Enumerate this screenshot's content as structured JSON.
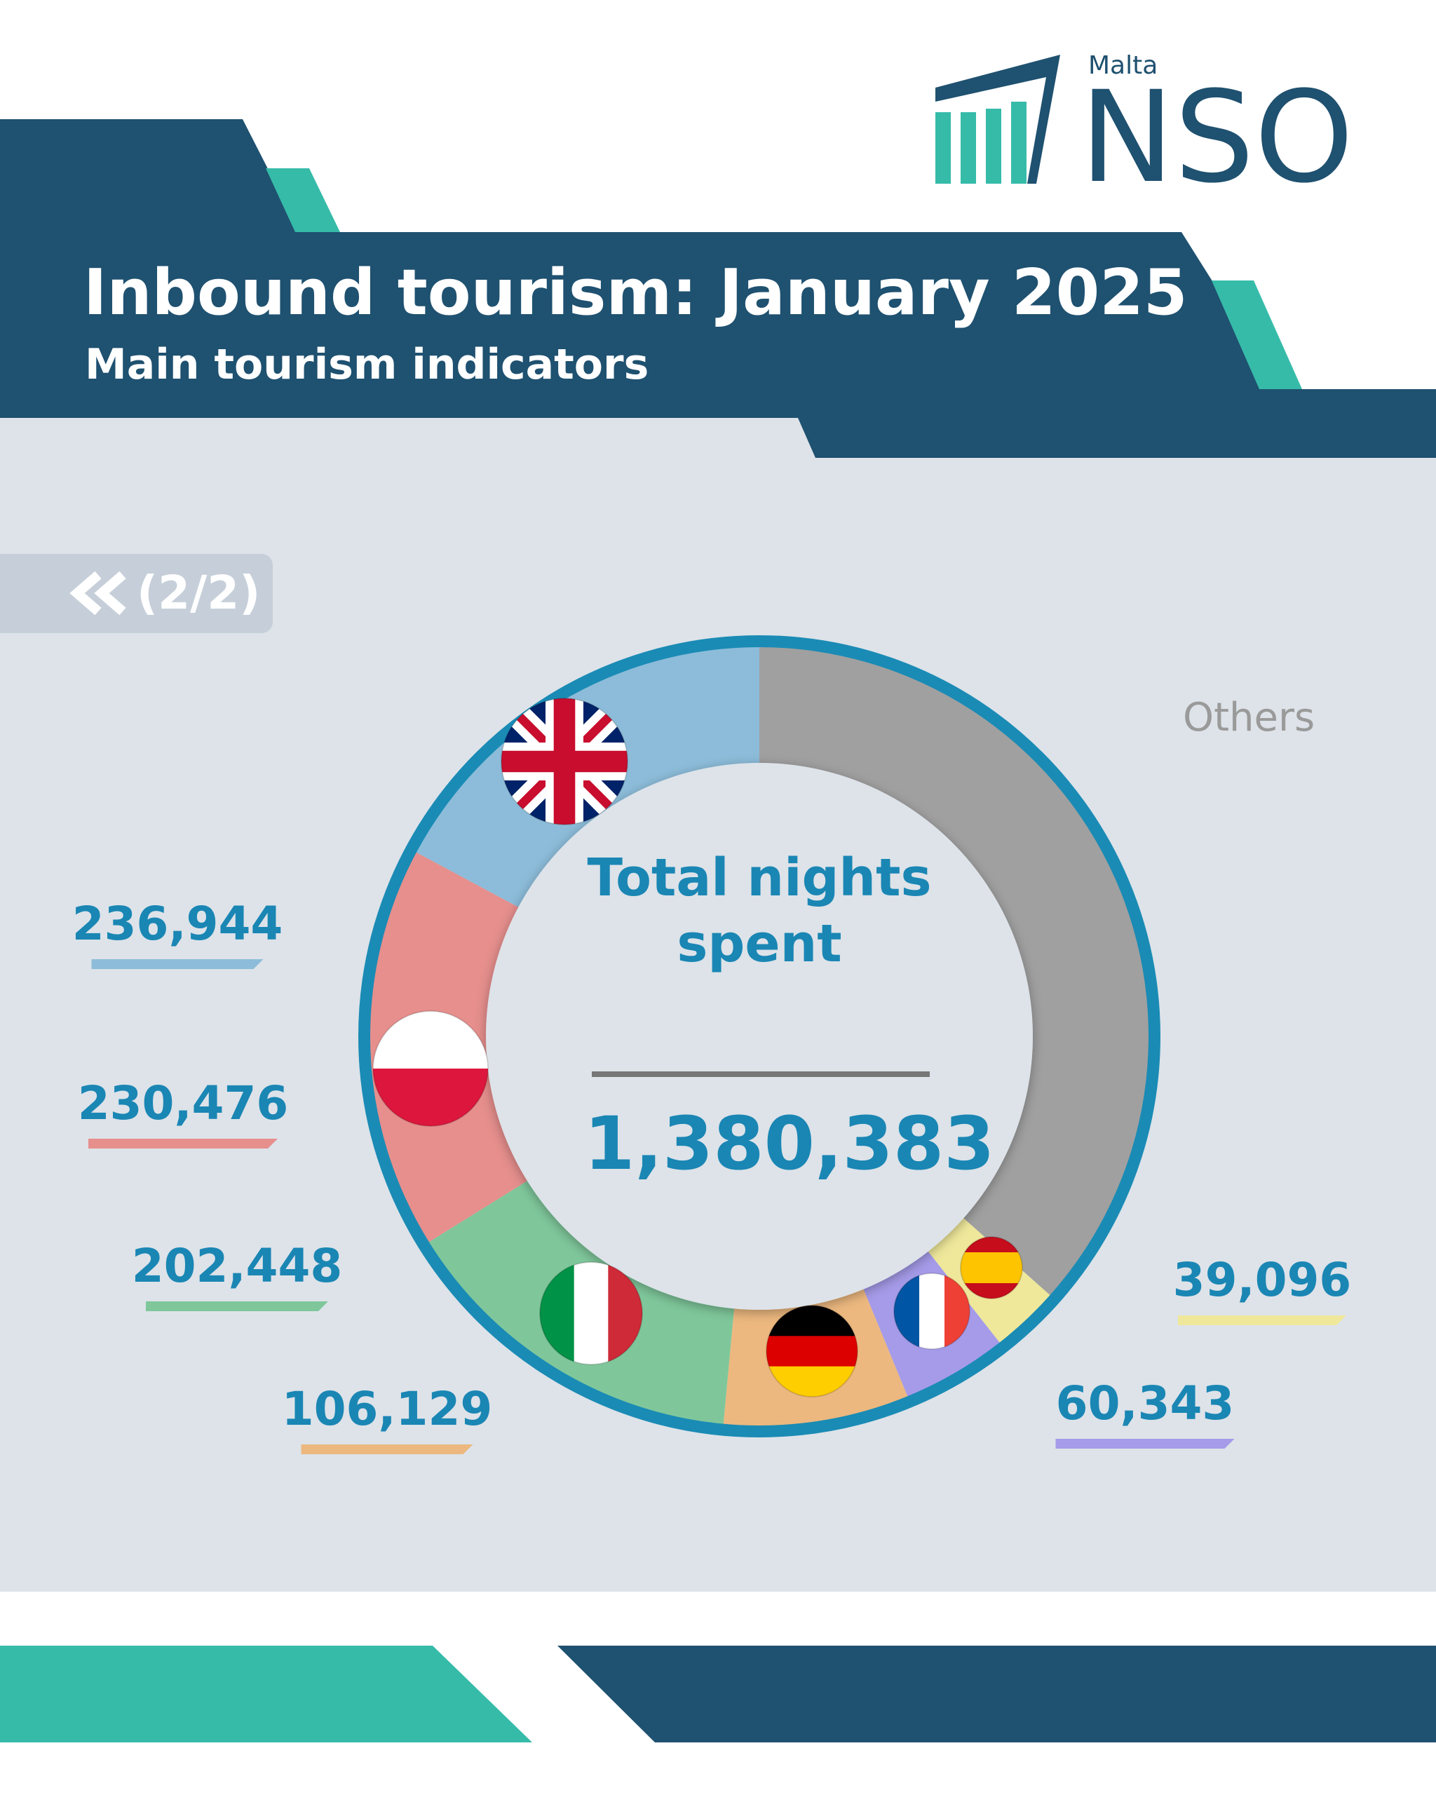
{
  "header": {
    "title": "Inbound tourism: January 2025",
    "subtitle": "Main tourism indicators"
  },
  "logo": {
    "small": "Malta",
    "text": "NSO"
  },
  "nav": {
    "label": "(2/2)"
  },
  "chart_data": {
    "type": "donut",
    "categories": [
      "Others",
      null,
      null,
      null,
      null,
      null,
      null
    ],
    "values": [
      504947,
      39096,
      60343,
      106129,
      202448,
      230476,
      236944
    ],
    "value_labels": [
      null,
      "39,096",
      "60,343",
      "106,129",
      "202,448",
      "230,476",
      "236,944"
    ],
    "colors": [
      "#a0a0a0",
      "#efe89b",
      "#a59be9",
      "#ecb87f",
      "#7fc79b",
      "#e68f8d",
      "#8cbcd9"
    ],
    "center_title": "Total nights spent",
    "center_value": 1380383,
    "center_value_label": "1,380,383"
  }
}
